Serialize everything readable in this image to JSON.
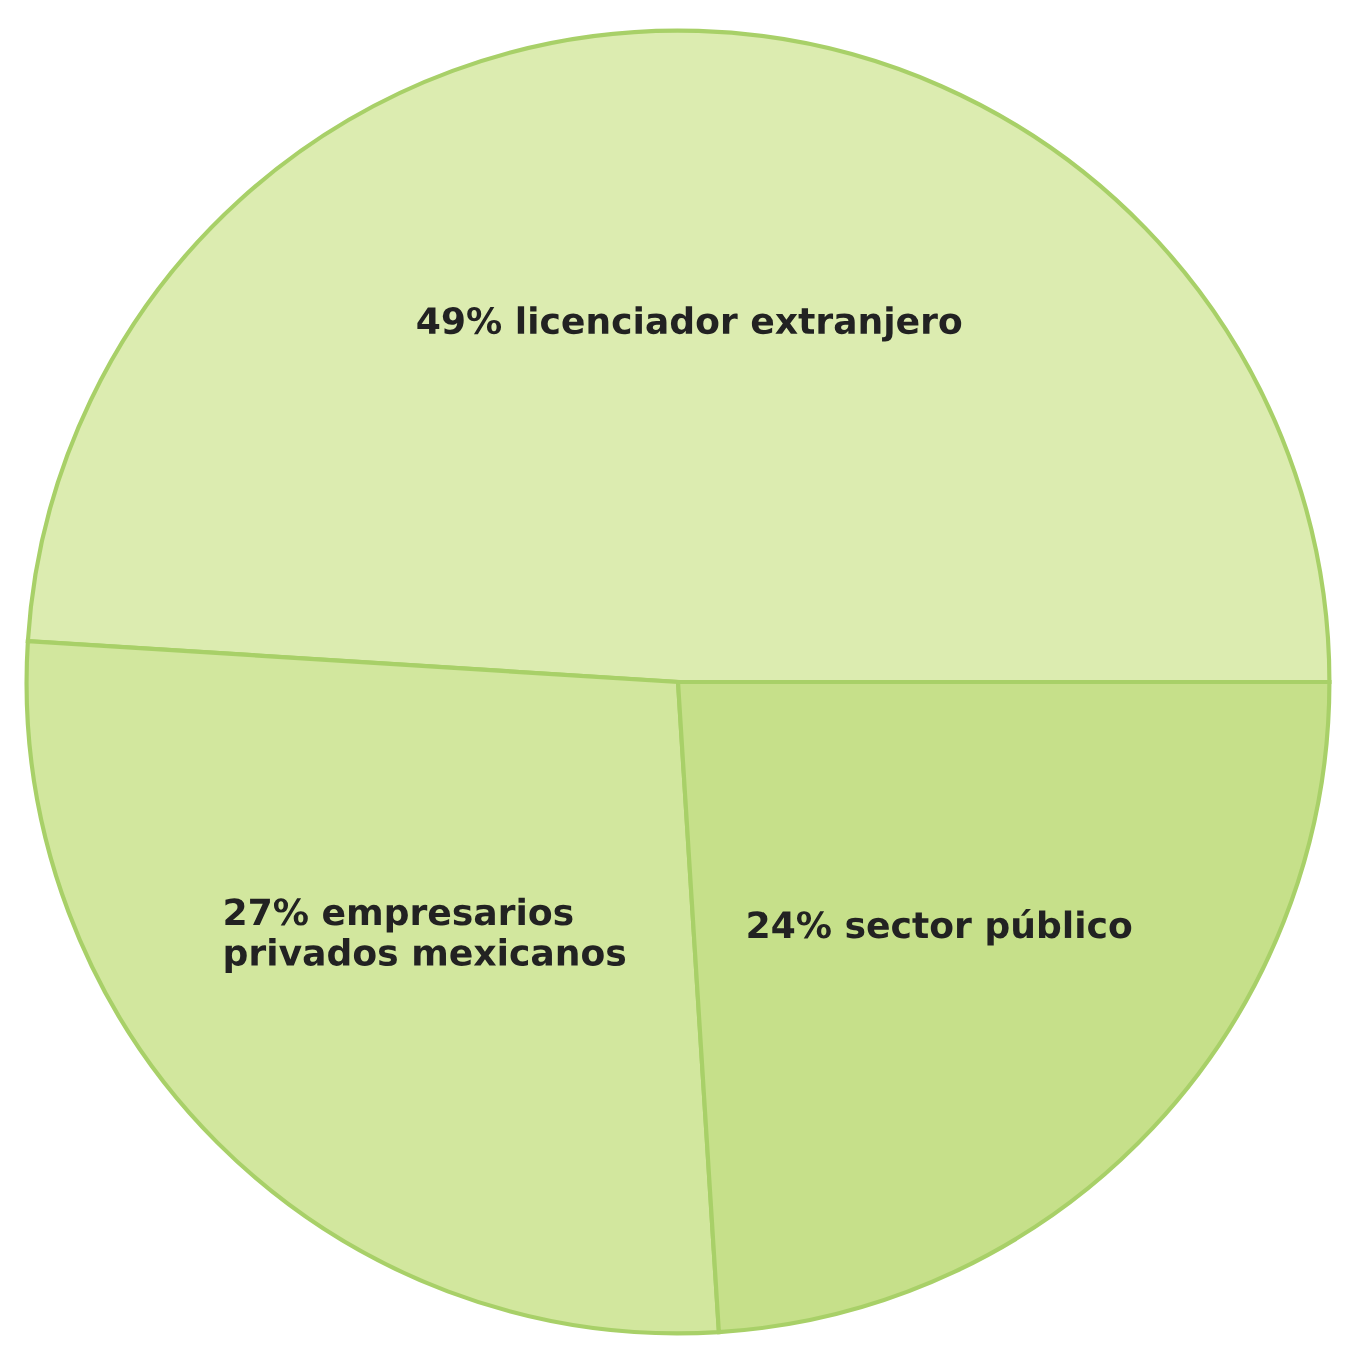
{
  "chart_data": {
    "type": "pie",
    "categories": [
      "licenciador extranjero",
      "empresarios\nprivados mexicanos",
      "sector público"
    ],
    "values": [
      49,
      27,
      24
    ],
    "value_labels": [
      "49%",
      "27%",
      "24%"
    ],
    "colors": [
      "#dcecb0",
      "#d2e79e",
      "#c6e08a"
    ]
  }
}
